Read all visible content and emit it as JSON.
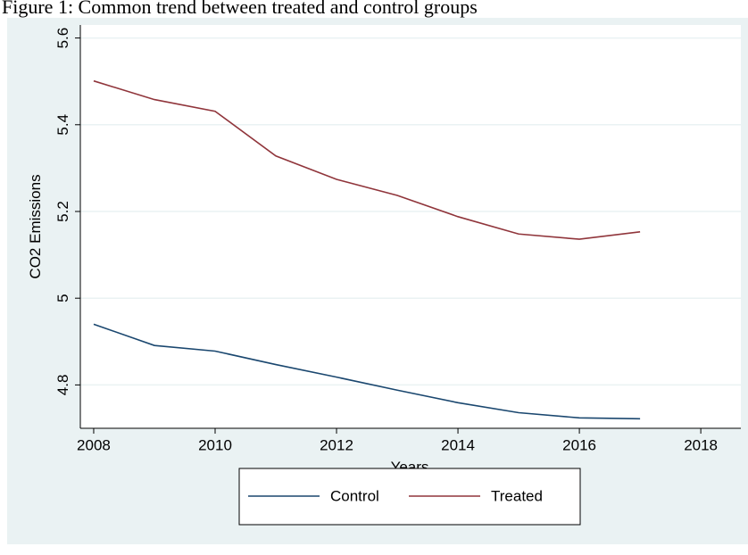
{
  "chart_data": {
    "type": "line",
    "title": "Figure 1: Common trend between treated and control groups",
    "x_label": "Years",
    "y_label": "CO2 Emissions",
    "x": [
      2008,
      2009,
      2010,
      2011,
      2012,
      2013,
      2014,
      2015,
      2016,
      2017
    ],
    "series": [
      {
        "name": "Control",
        "color": "#1a476f",
        "values": [
          4.94,
          4.891,
          4.878,
          4.847,
          4.818,
          4.788,
          4.759,
          4.736,
          4.724,
          4.722
        ]
      },
      {
        "name": "Treated",
        "color": "#90353b",
        "values": [
          5.501,
          5.458,
          5.431,
          5.328,
          5.274,
          5.237,
          5.188,
          5.148,
          5.136,
          5.153
        ]
      }
    ],
    "xlim": [
      2007.78,
      2018.66
    ],
    "xticks": [
      2008,
      2010,
      2012,
      2014,
      2016,
      2018
    ],
    "ylim": [
      4.7,
      5.63
    ],
    "yticks": [
      4.8,
      5,
      5.2,
      5.4,
      5.6
    ],
    "grid": true,
    "legend": "bottom"
  }
}
